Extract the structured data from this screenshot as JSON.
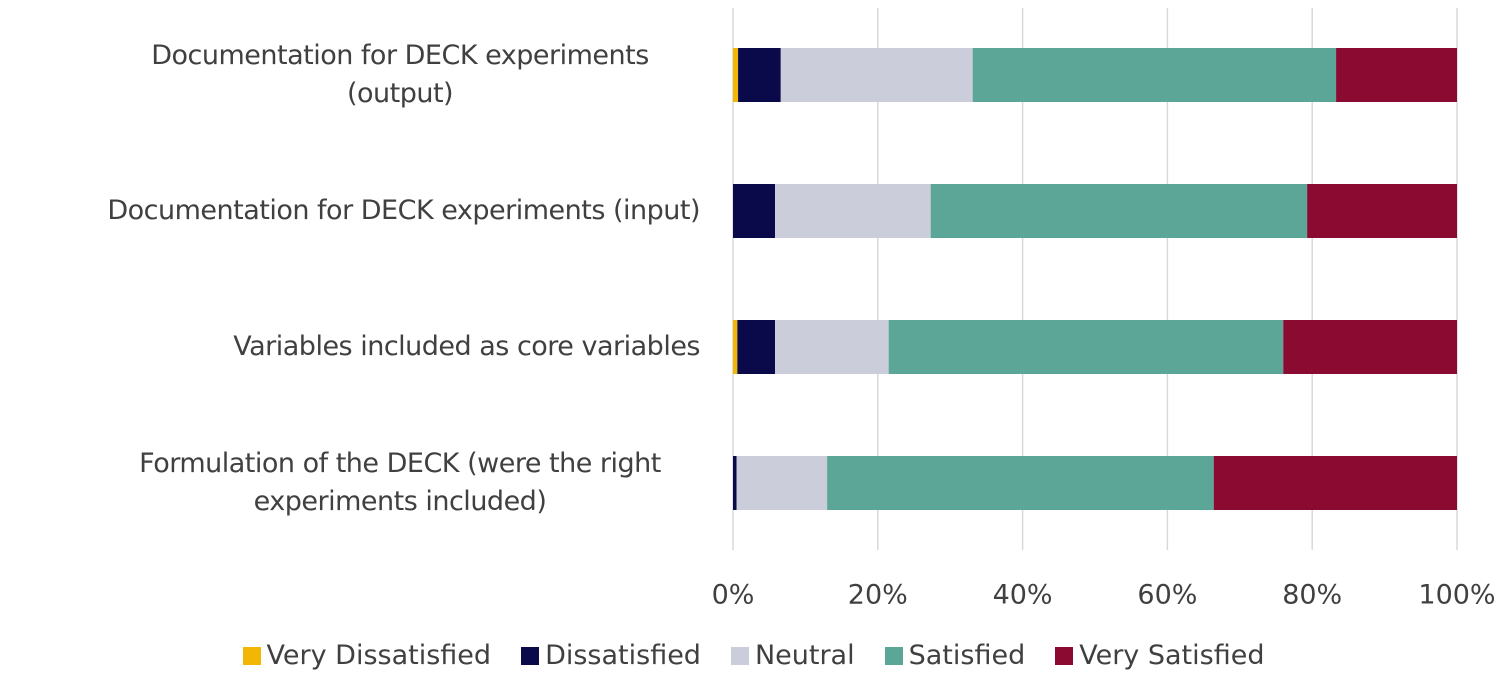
{
  "chart_data": {
    "type": "stacked_bar_horizontal",
    "categories": [
      "Documentation for DECK experiments (output)",
      "Documentation for DECK experiments (input)",
      "Variables included as core variables",
      "Formulation of the DECK (were the right experiments included)"
    ],
    "series": [
      {
        "name": "Very Dissatisfied",
        "color": "#f2b705",
        "values": [
          0.7,
          0,
          0.6,
          0
        ]
      },
      {
        "name": "Dissatisfied",
        "color": "#0a0a4a",
        "values": [
          5.9,
          5.8,
          5.2,
          0.5
        ]
      },
      {
        "name": "Neutral",
        "color": "#cbcdda",
        "values": [
          26.5,
          21.5,
          15.7,
          12.5
        ]
      },
      {
        "name": "Satisfied",
        "color": "#5ba697",
        "values": [
          50.2,
          52.0,
          54.5,
          53.4
        ]
      },
      {
        "name": "Very Satisfied",
        "color": "#8b0a32",
        "values": [
          16.7,
          20.7,
          24.0,
          33.6
        ]
      }
    ],
    "xlim": [
      0,
      100
    ],
    "xticks": [
      {
        "value": 0,
        "label": "0%"
      },
      {
        "value": 20,
        "label": "20%"
      },
      {
        "value": 40,
        "label": "40%"
      },
      {
        "value": 60,
        "label": "60%"
      },
      {
        "value": 80,
        "label": "80%"
      },
      {
        "value": 100,
        "label": "100%"
      }
    ],
    "grid": true,
    "legend": "bottom"
  }
}
